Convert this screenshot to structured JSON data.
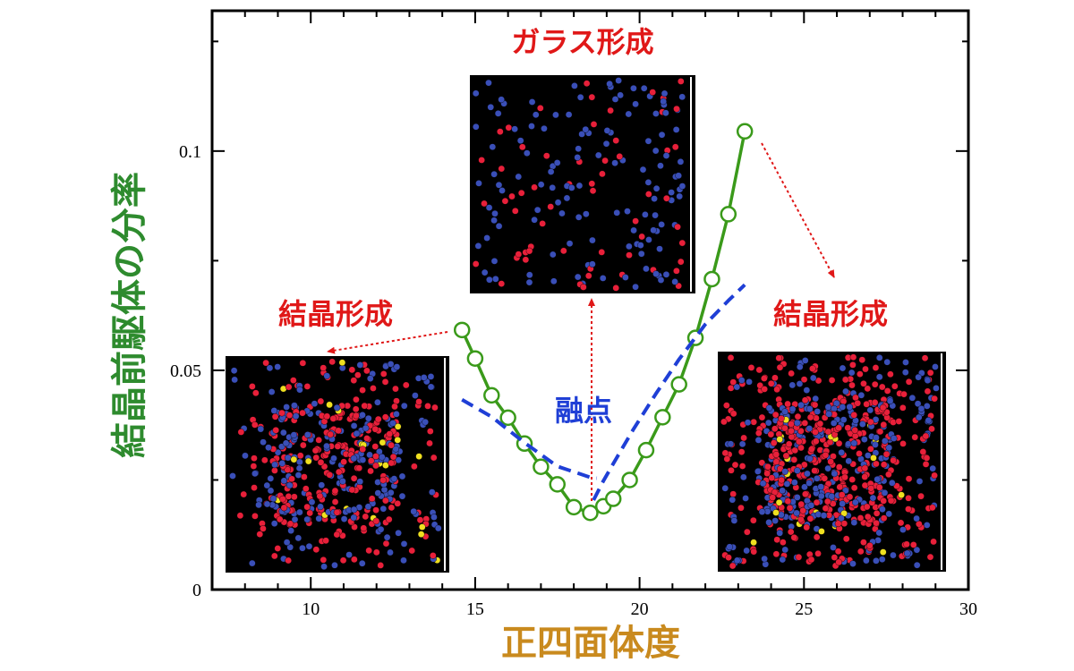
{
  "chart_data": {
    "type": "line",
    "xlabel": "正四面体度",
    "ylabel": "結晶前駆体の分率",
    "xlim": [
      7,
      30
    ],
    "ylim": [
      0,
      0.132
    ],
    "x_ticks": [
      10,
      15,
      20,
      25,
      30
    ],
    "x_tick_labels": [
      "10",
      "15",
      "20",
      "25",
      "30"
    ],
    "y_ticks": [
      0,
      0.05,
      0.1
    ],
    "y_tick_labels": [
      "0",
      "0.05",
      "0.1"
    ],
    "grid": false,
    "series": [
      {
        "style": "solid line with open circles",
        "color": "#3a9a1a",
        "x": [
          14.6,
          15.0,
          15.5,
          16.0,
          16.5,
          17.0,
          17.5,
          18.0,
          18.5,
          18.9,
          19.2,
          19.7,
          20.2,
          20.7,
          21.2,
          21.7,
          22.2,
          22.7,
          23.2
        ],
        "y": [
          0.0592,
          0.0527,
          0.0443,
          0.0392,
          0.0333,
          0.028,
          0.024,
          0.0188,
          0.0175,
          0.019,
          0.0207,
          0.025,
          0.0318,
          0.0393,
          0.0468,
          0.0574,
          0.0708,
          0.0856,
          0.1045
        ]
      },
      {
        "style": "dashed line",
        "color": "#1f3fd6",
        "x": [
          14.6,
          15.5,
          16.5,
          17.5,
          18.5,
          18.7
        ],
        "y": [
          0.0433,
          0.0394,
          0.0335,
          0.0281,
          0.0256,
          0.0254
        ]
      },
      {
        "style": "dashed line",
        "color": "#1f3fd6",
        "x": [
          18.6,
          18.9,
          19.3,
          19.8,
          20.5,
          21.2,
          22.0,
          22.7,
          23.2
        ],
        "y": [
          0.0204,
          0.0248,
          0.03,
          0.0364,
          0.0447,
          0.0525,
          0.0605,
          0.0659,
          0.0695
        ]
      }
    ],
    "annotations": {
      "glass": "ガラス形成",
      "crystal_left": "結晶形成",
      "crystal_right": "結晶形成",
      "melting_point": "融点"
    }
  },
  "colors": {
    "axis": "#000000",
    "green_series": "#3a9a1a",
    "blue_series": "#1f3fd6",
    "arrow_red": "#e01818",
    "inset_bg": "#000000",
    "particle_red": "#e8203a",
    "particle_blue": "#3a4fb8",
    "particle_yellow": "#f0e020"
  }
}
